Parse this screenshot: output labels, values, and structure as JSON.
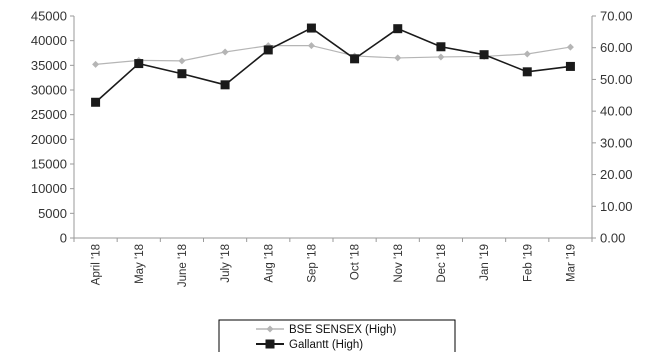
{
  "chart_data": {
    "type": "line",
    "categories": [
      "April '18",
      "May '18",
      "June '18",
      "July '18",
      "Aug '18",
      "Sep '18",
      "Oct '18",
      "Nov '18",
      "Dec '18",
      "Jan '19",
      "Feb '19",
      "Mar '19"
    ],
    "series": [
      {
        "name": "BSE SENSEX (High)",
        "axis": "left",
        "color": "#b5b5b5",
        "marker": "diamond",
        "values": [
          35200,
          36000,
          35900,
          37700,
          39000,
          39000,
          36900,
          36500,
          36700,
          36800,
          37300,
          38700
        ]
      },
      {
        "name": "Gallantt (High)",
        "axis": "right",
        "color": "#1a1a1a",
        "marker": "square",
        "values": [
          42.8,
          55.0,
          51.8,
          48.3,
          59.3,
          66.2,
          56.5,
          66.0,
          60.3,
          57.8,
          52.4,
          54.1
        ]
      }
    ],
    "y_left": {
      "lim": [
        0,
        45000
      ],
      "ticks": [
        "0",
        "5000",
        "10000",
        "15000",
        "20000",
        "25000",
        "30000",
        "35000",
        "40000",
        "45000"
      ]
    },
    "y_right": {
      "lim": [
        0,
        70
      ],
      "ticks": [
        "0.00",
        "10.00",
        "20.00",
        "30.00",
        "40.00",
        "50.00",
        "60.00",
        "70.00"
      ]
    },
    "grid": false,
    "legend_position": "bottom-center"
  }
}
